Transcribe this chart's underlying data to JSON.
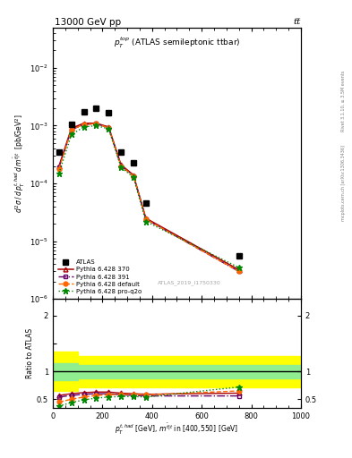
{
  "title_left": "13000 GeV pp",
  "title_right": "tt̅",
  "panel_label": "$p_T^{top}$ (ATLAS semileptonic ttbar)",
  "watermark": "ATLAS_2019_I1750330",
  "right_label_top": "Rivet 3.1.10, ≥ 3.5M events",
  "right_label_bot": "mcplots.cern.ch [arXiv:1306.3436]",
  "ylabel_main": "d$^2\\sigma$ / d $p_T^{t,had}$ d $m^{\\bar{t}|t}$  [pb/GeV$^2$]",
  "ylabel_ratio": "Ratio to ATLAS",
  "xlabel": "$p_T^{t,had}$ [GeV], $m^{\\bar{t}|t}$ in [400,550] [GeV]",
  "xlim": [
    0,
    1000
  ],
  "ylim_main": [
    1e-06,
    0.05
  ],
  "ylim_ratio": [
    0.35,
    2.3
  ],
  "atlas_x": [
    25,
    75,
    125,
    175,
    225,
    275,
    325,
    375,
    750
  ],
  "atlas_y": [
    0.00035,
    0.00105,
    0.00175,
    0.002,
    0.0017,
    0.00035,
    0.00023,
    4.5e-05,
    5.5e-06
  ],
  "py370_x": [
    25,
    75,
    125,
    175,
    225,
    275,
    325,
    375,
    750
  ],
  "py370_y": [
    0.0002,
    0.0009,
    0.0011,
    0.0011,
    0.00095,
    0.00021,
    0.00014,
    2.5e-05,
    3.2e-06
  ],
  "py391_x": [
    25,
    75,
    125,
    175,
    225,
    275,
    325,
    375,
    750
  ],
  "py391_y": [
    0.00019,
    0.00085,
    0.00105,
    0.00108,
    0.00092,
    0.0002,
    0.000135,
    2.4e-05,
    3e-06
  ],
  "pydef_x": [
    25,
    75,
    125,
    175,
    225,
    275,
    325,
    375,
    750
  ],
  "pydef_y": [
    0.00018,
    0.00085,
    0.00105,
    0.00108,
    0.00092,
    0.0002,
    0.000135,
    2.4e-05,
    3e-06
  ],
  "pyq2o_x": [
    25,
    75,
    125,
    175,
    225,
    275,
    325,
    375,
    750
  ],
  "pyq2o_y": [
    0.00015,
    0.0007,
    0.00095,
    0.001,
    0.00088,
    0.00019,
    0.000128,
    2.2e-05,
    3.5e-06
  ],
  "ratio_py370_x": [
    25,
    75,
    125,
    175,
    225,
    275,
    325,
    375,
    750
  ],
  "ratio_py370": [
    0.57,
    0.6,
    0.62,
    0.63,
    0.63,
    0.61,
    0.6,
    0.59,
    0.61
  ],
  "ratio_py391_x": [
    25,
    75,
    125,
    175,
    225,
    275,
    325,
    375,
    750
  ],
  "ratio_py391": [
    0.54,
    0.57,
    0.59,
    0.6,
    0.6,
    0.58,
    0.57,
    0.56,
    0.56
  ],
  "ratio_pydef_x": [
    25,
    75,
    125,
    175,
    225,
    275,
    325,
    375,
    750
  ],
  "ratio_pydef": [
    0.45,
    0.5,
    0.54,
    0.57,
    0.58,
    0.59,
    0.59,
    0.58,
    0.65
  ],
  "ratio_pyq2o_x": [
    25,
    75,
    125,
    175,
    225,
    275,
    325,
    375,
    750
  ],
  "ratio_pyq2o": [
    0.38,
    0.44,
    0.49,
    0.52,
    0.54,
    0.55,
    0.55,
    0.54,
    0.72
  ],
  "color_py370": "#aa0000",
  "color_py391": "#660066",
  "color_pydef": "#ff6600",
  "color_pyq2o": "#008800"
}
